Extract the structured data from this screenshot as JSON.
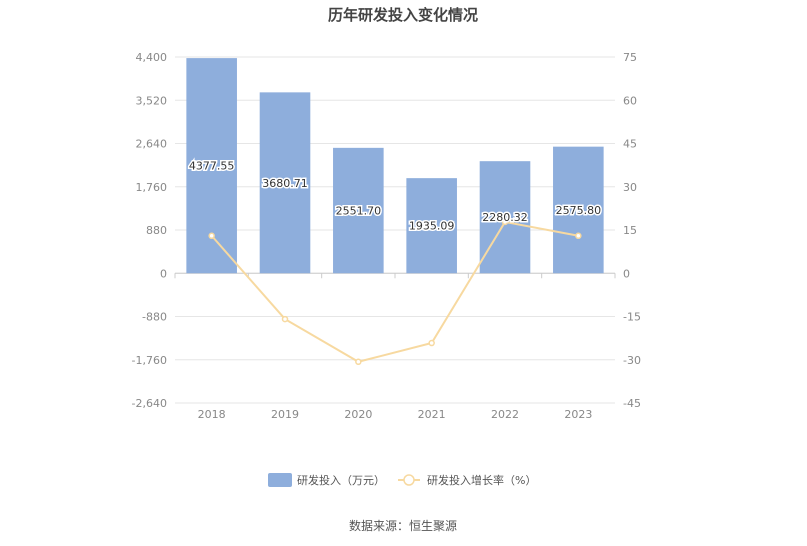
{
  "chart_data": {
    "type": "bar",
    "title": "历年研发投入变化情况",
    "categories": [
      "2018",
      "2019",
      "2020",
      "2021",
      "2022",
      "2023"
    ],
    "series": [
      {
        "name": "研发投入（万元）",
        "type": "bar",
        "axis": "left",
        "values": [
          4377.55,
          3680.71,
          2551.7,
          1935.09,
          2280.32,
          2575.8
        ],
        "labels": [
          "4377.55",
          "3680.71",
          "2551.70",
          "1935.09",
          "2280.32",
          "2575.80"
        ],
        "color": "#8eaedc"
      },
      {
        "name": "研发投入增长率（%）",
        "type": "line",
        "axis": "right",
        "values": [
          13.0,
          -15.9,
          -30.7,
          -24.2,
          17.8,
          13.0
        ],
        "color": "#f7d9a0"
      }
    ],
    "y_left": {
      "ticks": [
        "4,400",
        "3,520",
        "2,640",
        "1,760",
        "880",
        "0",
        "-880",
        "-1,760",
        "-2,640"
      ],
      "ylim": [
        -2640,
        4400
      ]
    },
    "y_right": {
      "ticks": [
        "75",
        "60",
        "45",
        "30",
        "15",
        "0",
        "-15",
        "-30",
        "-45"
      ],
      "ylim": [
        -45,
        75
      ]
    },
    "grid": true,
    "legend_position": "bottom"
  },
  "source": "数据来源：恒生聚源"
}
